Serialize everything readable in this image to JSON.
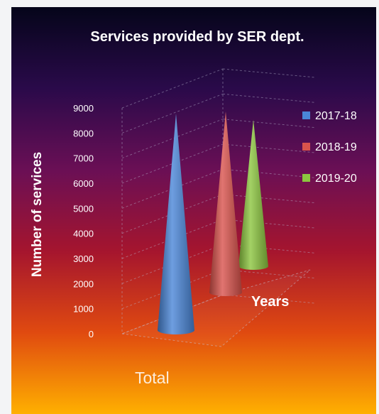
{
  "chart_data": {
    "type": "bar",
    "variant": "3d-cone",
    "title": "Services provided by SER dept.",
    "xlabel": "Years",
    "ylabel": "Number of services",
    "categories": [
      "Total"
    ],
    "series": [
      {
        "name": "2017-18",
        "values": [
          8700
        ],
        "color": "#4a86d8"
      },
      {
        "name": "2018-19",
        "values": [
          7500
        ],
        "color": "#d9534c"
      },
      {
        "name": "2019-20",
        "values": [
          6200
        ],
        "color": "#8cc63f"
      }
    ],
    "yticks": [
      0,
      1000,
      2000,
      3000,
      4000,
      5000,
      6000,
      7000,
      8000,
      9000
    ],
    "ylim": [
      0,
      9000
    ],
    "grid": true,
    "legend": "right",
    "background_gradient": [
      "#05051a",
      "#2a0a4a",
      "#6a0f55",
      "#a5152e",
      "#e04a10",
      "#ffb000"
    ]
  }
}
